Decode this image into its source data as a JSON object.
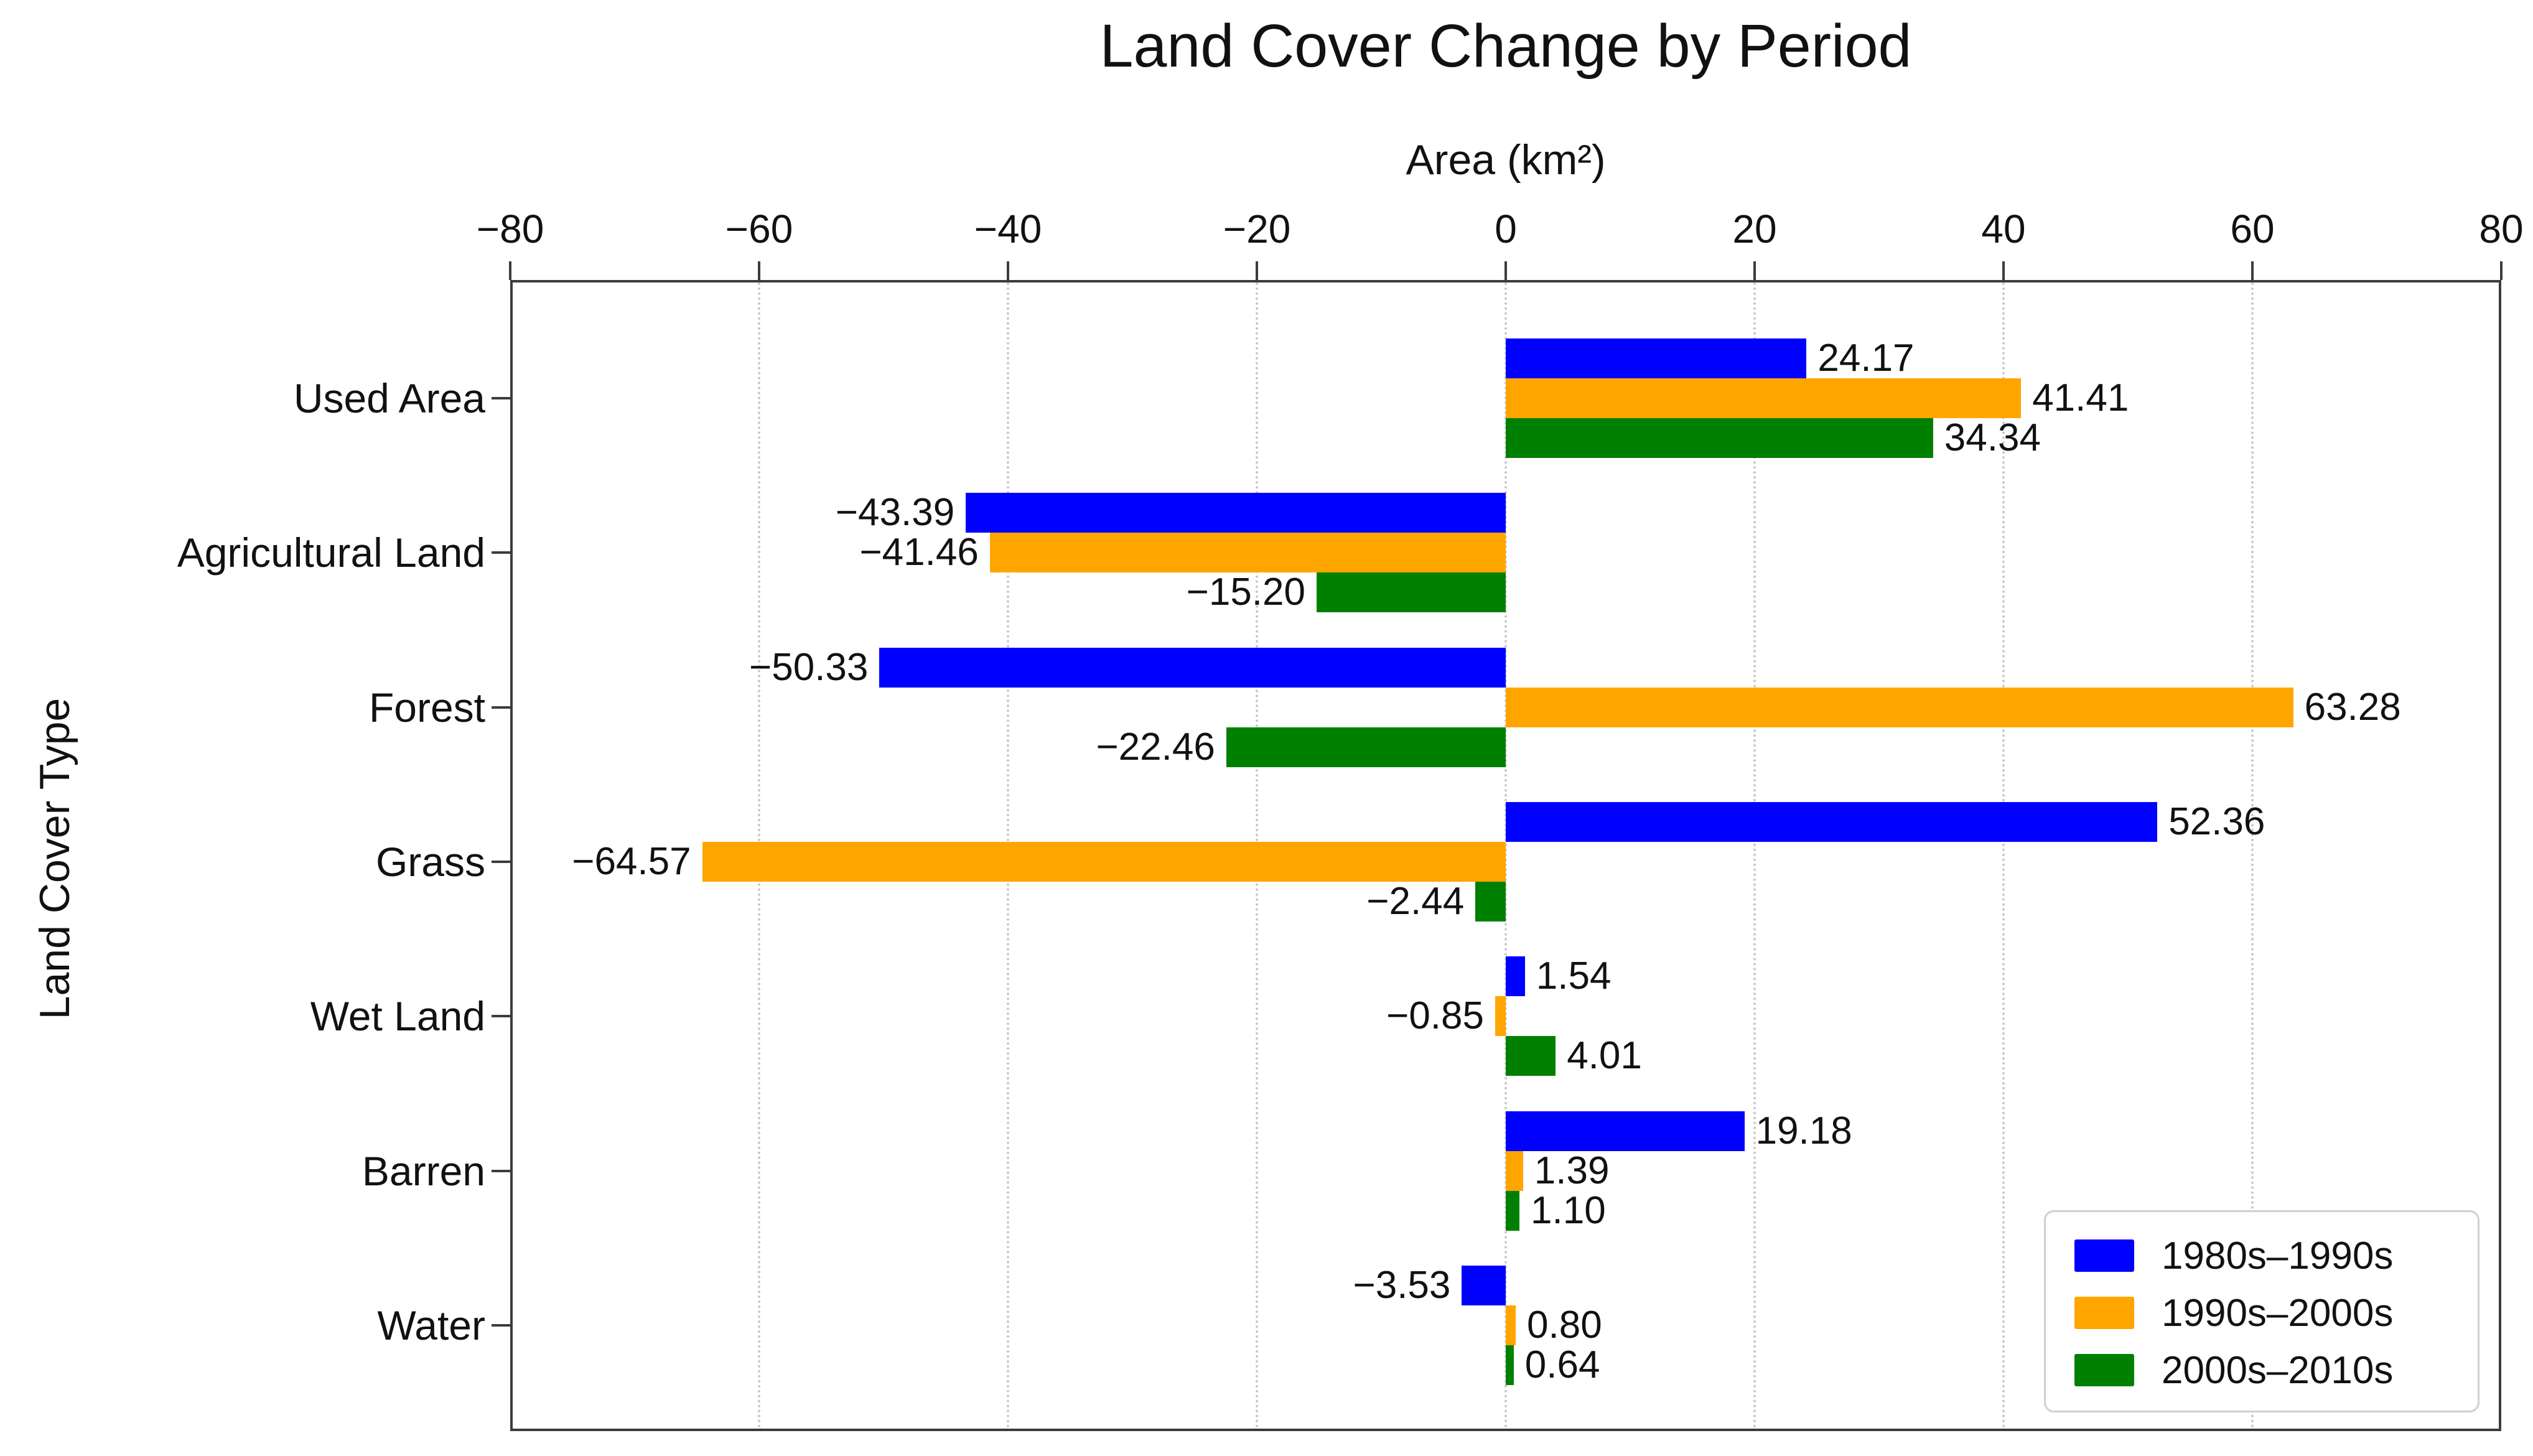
{
  "chart_data": {
    "type": "bar",
    "orientation": "horizontal",
    "title": "Land Cover Change by Period",
    "xlabel": "Area (km²)",
    "ylabel": "Land Cover Type",
    "xlim": [
      -80,
      80
    ],
    "xticks": [
      -80,
      -60,
      -40,
      -20,
      0,
      20,
      40,
      60,
      80
    ],
    "xtick_labels": [
      "−80",
      "−60",
      "−40",
      "−20",
      "0",
      "20",
      "40",
      "60",
      "80"
    ],
    "grid": true,
    "categories": [
      "Used Area",
      "Agricultural Land",
      "Forest",
      "Grass",
      "Wet Land",
      "Barren",
      "Water"
    ],
    "series": [
      {
        "name": "1980s–1990s",
        "color": "#0000ff",
        "values": [
          24.17,
          -43.39,
          -50.33,
          52.36,
          1.54,
          19.18,
          -3.53
        ],
        "labels": [
          "24.17",
          "−43.39",
          "−50.33",
          "52.36",
          "1.54",
          "19.18",
          "−3.53"
        ]
      },
      {
        "name": "1990s–2000s",
        "color": "#ffa500",
        "values": [
          41.41,
          -41.46,
          63.28,
          -64.57,
          -0.85,
          1.39,
          0.8
        ],
        "labels": [
          "41.41",
          "−41.46",
          "63.28",
          "−64.57",
          "−0.85",
          "1.39",
          "0.80"
        ]
      },
      {
        "name": "2000s–2010s",
        "color": "#008000",
        "values": [
          34.34,
          -15.2,
          -22.46,
          -2.44,
          4.01,
          1.1,
          0.64
        ],
        "labels": [
          "34.34",
          "−15.20",
          "−22.46",
          "−2.44",
          "4.01",
          "1.10",
          "0.64"
        ]
      }
    ],
    "legend": {
      "position": "lower right",
      "entries": [
        "1980s–1990s",
        "1990s–2000s",
        "2000s–2010s"
      ]
    },
    "colors": {
      "grid": "#c8c8c8",
      "frame": "#3c3c3c",
      "text": "#111111",
      "background": "#ffffff"
    }
  }
}
